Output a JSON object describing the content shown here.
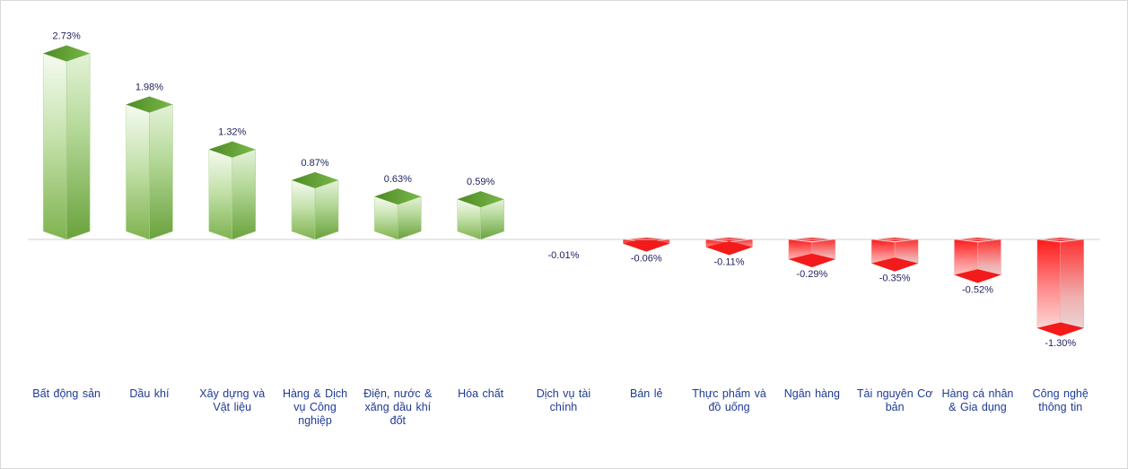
{
  "chart_data": {
    "type": "bar",
    "title": "",
    "xlabel": "",
    "ylabel": "",
    "value_suffix": "%",
    "categories": [
      "Bất động sản",
      "Dầu khí",
      "Xây dựng và Vật liệu",
      "Hàng & Dịch vụ Công nghiệp",
      "Điện, nước & xăng dầu khí đốt",
      "Hóa chất",
      "Dịch vụ tài chính",
      "Bán lẻ",
      "Thực phẩm và đồ uống",
      "Ngân hàng",
      "Tài nguyên Cơ bản",
      "Hàng cá nhân & Gia dụng",
      "Công nghệ thông tin"
    ],
    "values": [
      2.73,
      1.98,
      1.32,
      0.87,
      0.63,
      0.59,
      -0.01,
      -0.06,
      -0.11,
      -0.29,
      -0.35,
      -0.52,
      -1.3
    ],
    "labels": [
      "2.73%",
      "1.98%",
      "1.32%",
      "0.87%",
      "0.63%",
      "0.59%",
      "-0.01%",
      "-0.06%",
      "-0.11%",
      "-0.29%",
      "-0.35%",
      "-0.52%",
      "-1.30%"
    ],
    "colors": {
      "positive": "#6aaa3a",
      "negative": "#ff1f1f",
      "axis": "#d0d0d0"
    },
    "grid": false,
    "legend": "none"
  }
}
